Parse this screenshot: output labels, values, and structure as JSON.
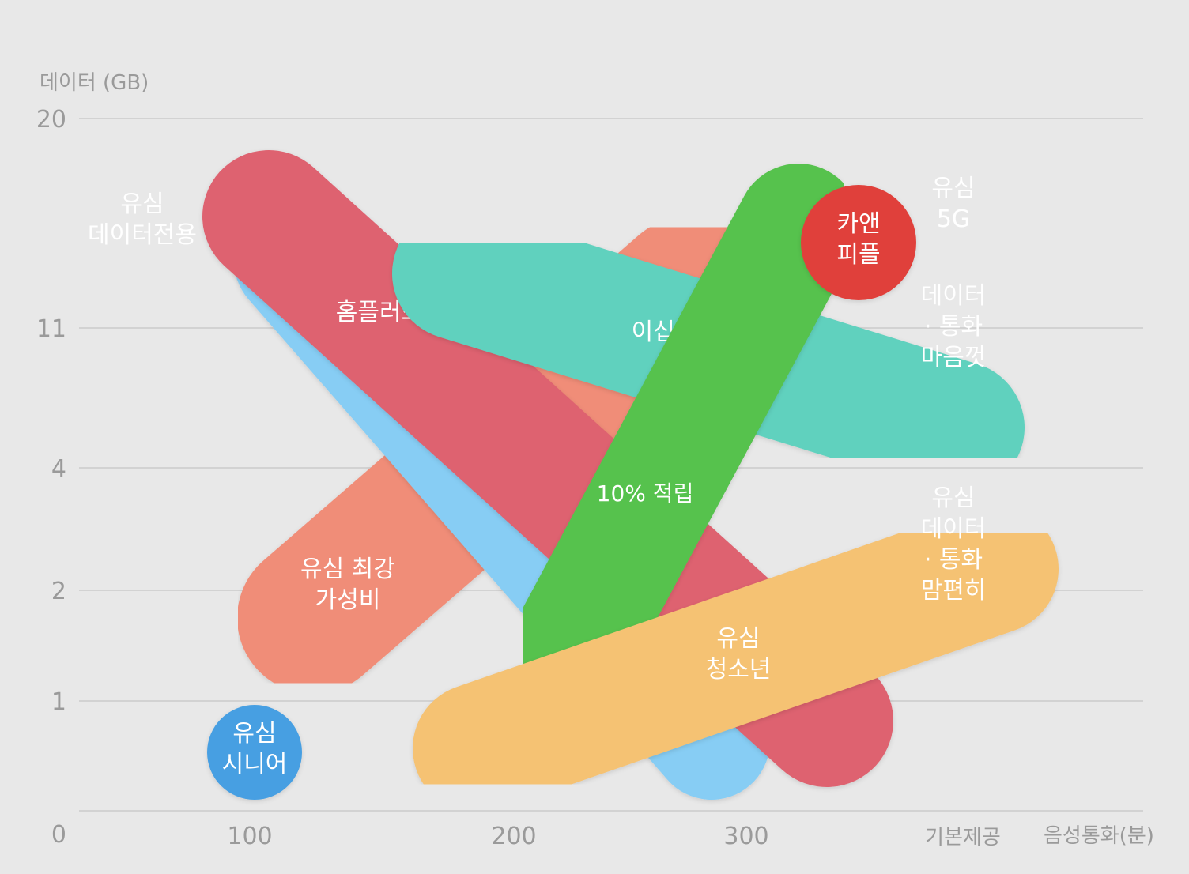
{
  "chart_data": {
    "type": "bubble-range",
    "ylabel": "데이터 (GB)",
    "xlabel": "음성통화(분)",
    "y_ticks": [
      "20",
      "11",
      "4",
      "2",
      "1",
      "0"
    ],
    "x_ticks": [
      "100",
      "200",
      "300",
      "기본제공"
    ],
    "grid": true,
    "plans": [
      {
        "name": "유심 데이터전용",
        "color": "#f5c273",
        "from": {
          "voice": "0",
          "data": "20"
        },
        "to": {
          "voice": "0",
          "data": "11"
        }
      },
      {
        "name": "홈플러스",
        "color": "#de6270",
        "from": {
          "voice": "110",
          "data": "13"
        },
        "to": {
          "voice": "340",
          "data": "1"
        }
      },
      {
        "name": "유심 최강 가성비",
        "color": "#f08d78",
        "from": {
          "voice": "130",
          "data": "1.5"
        },
        "to": {
          "voice": "300",
          "data": "12"
        }
      },
      {
        "name": "",
        "color": "#87cdf4",
        "from": {
          "voice": "110",
          "data": "12"
        },
        "to": {
          "voice": "300",
          "data": "1"
        }
      },
      {
        "name": "이십세",
        "color": "#60d1be",
        "from": {
          "voice": "180",
          "data": "12"
        },
        "to": {
          "voice": "기본제공",
          "data": "4"
        }
      },
      {
        "name": "10% 적립",
        "color": "#57c24e",
        "from": {
          "voice": "320",
          "data": "16"
        },
        "to": {
          "voice": "230",
          "data": "1"
        }
      },
      {
        "name": "유심 청소년",
        "color": "#f5c273",
        "from": {
          "voice": "190",
          "data": "1"
        },
        "to": {
          "voice": "기본제공",
          "data": "2"
        }
      },
      {
        "name": "카앤 피플",
        "color": "#e0403b",
        "from": {
          "voice": "350",
          "data": "14"
        },
        "to": {
          "voice": "350",
          "data": "14"
        }
      },
      {
        "name": "유심 5G",
        "color": "#ae72e9",
        "from": {
          "voice": "기본제공",
          "data": "20"
        },
        "to": {
          "voice": "기본제공",
          "data": "13"
        }
      },
      {
        "name": "유심 데이터 · 통화 마음껏",
        "color": "#ed779a",
        "from": {
          "voice": "기본제공",
          "data": "13"
        },
        "to": {
          "voice": "기본제공",
          "data": "11"
        }
      },
      {
        "name": "유심 데이터 · 통화 맘편히",
        "color": "#3d5c96",
        "from": {
          "voice": "기본제공",
          "data": "4"
        },
        "to": {
          "voice": "기본제공",
          "data": "1"
        }
      },
      {
        "name": "유심 시니어",
        "color": "#469fe2",
        "from": {
          "voice": "100",
          "data": "0.5"
        },
        "to": {
          "voice": "100",
          "data": "0.5"
        }
      }
    ]
  }
}
